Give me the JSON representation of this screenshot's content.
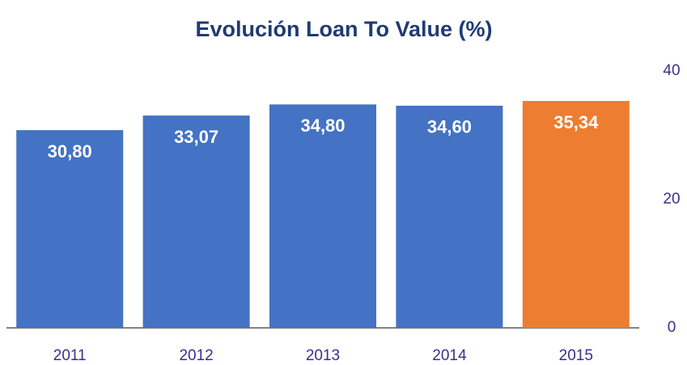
{
  "chart_data": {
    "type": "bar",
    "title": "Evolución Loan To Value (%)",
    "categories": [
      "2011",
      "2012",
      "2013",
      "2014",
      "2015"
    ],
    "values": [
      30.8,
      33.07,
      34.8,
      34.6,
      35.34
    ],
    "value_labels": [
      "30,80",
      "33,07",
      "34,80",
      "34,60",
      "35,34"
    ],
    "colors": [
      "#4472c4",
      "#4472c4",
      "#4472c4",
      "#4472c4",
      "#ed7d31"
    ],
    "ylim": [
      0,
      40
    ],
    "yticks": [
      0,
      20,
      40
    ],
    "y_axis_side": "right",
    "grid": false
  }
}
